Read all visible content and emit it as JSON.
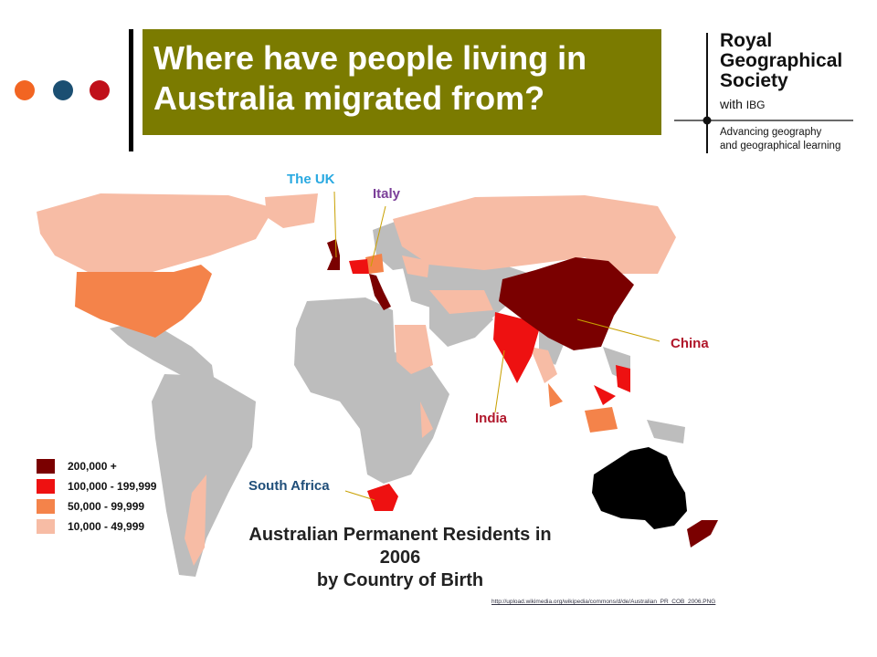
{
  "title_lines": [
    "Where have people living in",
    "Australia migrated from?"
  ],
  "colors": {
    "title_bg": "#7b7b00",
    "dot_orange": "#f26522",
    "dot_blue": "#1b4f72",
    "dot_red": "#c0101a",
    "tier_200k": "#7a0000",
    "tier_100k": "#ee1111",
    "tier_50k": "#f4834a",
    "tier_10k": "#f7bca5",
    "no_data": "#bdbdbd",
    "australia": "#000000"
  },
  "logo": {
    "name_lines": [
      "Royal",
      "Geographical",
      "Society"
    ],
    "with_text": "with",
    "ibg": "IBG",
    "tagline_lines": [
      "Advancing geography",
      "and geographical learning"
    ]
  },
  "callouts": {
    "uk": "The UK",
    "italy": "Italy",
    "china": "China",
    "india": "India",
    "south_africa": "South Africa"
  },
  "legend": [
    {
      "label": "200,000 +",
      "color": "#7a0000"
    },
    {
      "label": "100,000 - 199,999",
      "color": "#ee1111"
    },
    {
      "label": "50,000 -   99,999",
      "color": "#f4834a"
    },
    {
      "label": "10,000 -   49,999",
      "color": "#f7bca5"
    }
  ],
  "map_title_lines": [
    "Australian Permanent Residents in 2006",
    "by Country of Birth"
  ],
  "source": "http://upload.wikimedia.org/wikipedia/commons/d/de/Australian_PR_COB_2006.PNG"
}
